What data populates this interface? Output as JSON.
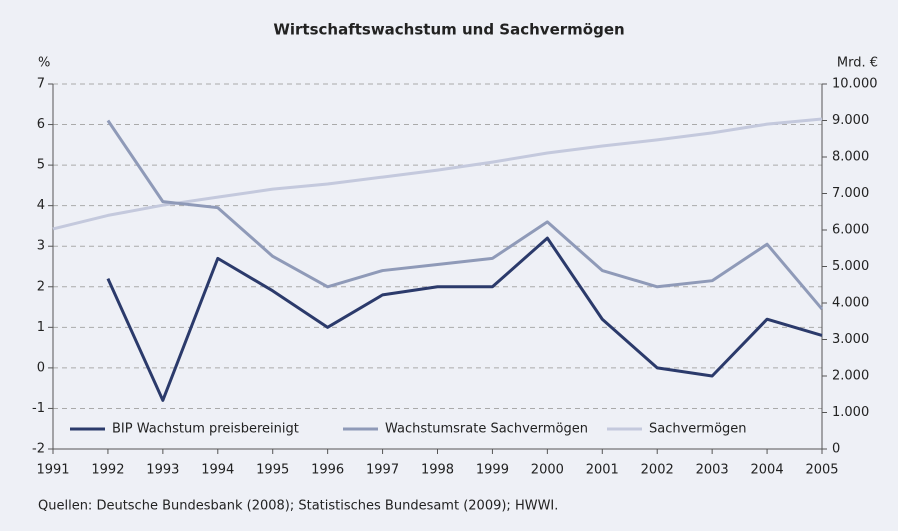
{
  "chart_data": {
    "type": "line",
    "title": "Wirtschaftswachstum und Sachvermögen",
    "y_label": "%",
    "y2_label": "Mrd. €",
    "source": "Quellen: Deutsche Bundesbank (2008); Statistisches Bundesamt (2009); HWWI.",
    "x": [
      1991,
      1992,
      1993,
      1994,
      1995,
      1996,
      1997,
      1998,
      1999,
      2000,
      2001,
      2002,
      2003,
      2004,
      2005
    ],
    "xlim": [
      1991,
      2005
    ],
    "xticks": [
      1991,
      1992,
      1993,
      1994,
      1995,
      1996,
      1997,
      1998,
      1999,
      2000,
      2001,
      2002,
      2003,
      2004,
      2005
    ],
    "ylim": [
      -2,
      7
    ],
    "yticks": [
      -2,
      -1,
      0,
      1,
      2,
      3,
      4,
      5,
      6,
      7
    ],
    "y2lim": [
      0,
      10000
    ],
    "y2ticks": [
      0,
      {
        "value": 1000,
        "label": "1.000"
      },
      {
        "value": 2000,
        "label": "2.000"
      },
      {
        "value": 3000,
        "label": "3.000"
      },
      {
        "value": 4000,
        "label": "4.000"
      },
      {
        "value": 5000,
        "label": "5.000"
      },
      {
        "value": 6000,
        "label": "6.000"
      },
      {
        "value": 7000,
        "label": "7.000"
      },
      {
        "value": 8000,
        "label": "8.000"
      },
      {
        "value": 9000,
        "label": "9.000"
      },
      {
        "value": 10000,
        "label": "10.000"
      }
    ],
    "grid": true,
    "legend": "bottom",
    "series": [
      {
        "name": "BIP Wachstum preisbereinigt",
        "color": "#2b3a6b",
        "values": [
          null,
          2.2,
          -0.8,
          2.7,
          1.9,
          1.0,
          1.8,
          2.0,
          2.0,
          3.2,
          1.2,
          0.0,
          -0.2,
          1.2,
          0.8
        ]
      },
      {
        "name": "Wachstumsrate Sachvermögen",
        "color": "#8f9ab8",
        "values": [
          null,
          6.1,
          4.1,
          3.95,
          2.75,
          2.0,
          2.4,
          2.55,
          2.7,
          3.6,
          2.4,
          2.0,
          2.15,
          3.05,
          1.45
        ]
      },
      {
        "name": "Sachvermögen",
        "color": "#c4c9dd",
        "axis": "y2",
        "values": [
          6030,
          6400,
          6680,
          6900,
          7120,
          7260,
          7450,
          7640,
          7860,
          8110,
          8300,
          8470,
          8660,
          8900,
          9040
        ]
      }
    ]
  }
}
